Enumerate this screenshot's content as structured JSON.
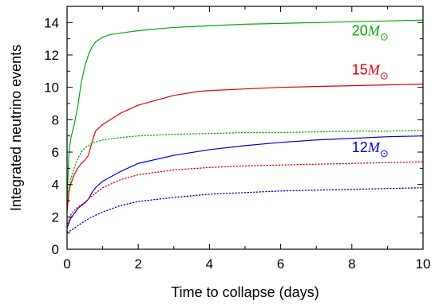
{
  "chart_data": {
    "type": "line",
    "xlabel": "Time to collapse (days)",
    "ylabel": "Integrated neutrino events",
    "xlim": [
      0,
      10
    ],
    "ylim": [
      0,
      15
    ],
    "x_ticks": [
      0,
      2,
      4,
      6,
      8,
      10
    ],
    "y_ticks": [
      0,
      2,
      4,
      6,
      8,
      10,
      12,
      14
    ],
    "x_tick_labels": [
      "0",
      "2",
      "4",
      "6",
      "8",
      "10"
    ],
    "y_tick_labels": [
      "0",
      "2",
      "4",
      "6",
      "8",
      "10",
      "12",
      "14"
    ],
    "grid": false,
    "annotations": [
      {
        "text": "20",
        "symbol": "M",
        "sub": "⊙",
        "color": "#00aa00",
        "x": 8.0,
        "y": 13.2
      },
      {
        "text": "15",
        "symbol": "M",
        "sub": "⊙",
        "color": "#dd0000",
        "x": 8.0,
        "y": 10.8
      },
      {
        "text": "12",
        "symbol": "M",
        "sub": "⊙",
        "color": "#0000cc",
        "x": 8.0,
        "y": 6.0
      }
    ],
    "series": [
      {
        "color": "#00aa00",
        "style": "solid",
        "x": [
          0,
          0.05,
          0.1,
          0.2,
          0.3,
          0.4,
          0.5,
          0.6,
          0.7,
          0.8,
          1.0,
          1.2,
          1.5,
          2,
          3,
          4,
          5,
          6,
          7,
          8,
          9,
          10
        ],
        "y": [
          3.0,
          5.8,
          6.8,
          7.7,
          8.8,
          10.3,
          11.3,
          12.0,
          12.5,
          12.8,
          13.1,
          13.25,
          13.35,
          13.5,
          13.7,
          13.8,
          13.9,
          13.95,
          14.0,
          14.05,
          14.1,
          14.15
        ]
      },
      {
        "color": "#dd0000",
        "style": "solid",
        "x": [
          0,
          0.05,
          0.1,
          0.2,
          0.3,
          0.4,
          0.5,
          0.6,
          0.7,
          0.8,
          1.0,
          1.5,
          2,
          3,
          3.7,
          4,
          5,
          6,
          7,
          8,
          9,
          10
        ],
        "y": [
          2.3,
          3.5,
          4.0,
          4.6,
          5.0,
          5.3,
          5.5,
          5.8,
          6.6,
          7.3,
          7.7,
          8.4,
          8.9,
          9.5,
          9.75,
          9.8,
          9.9,
          10.0,
          10.05,
          10.1,
          10.15,
          10.2
        ]
      },
      {
        "color": "#0000cc",
        "style": "solid",
        "x": [
          0,
          0.05,
          0.1,
          0.2,
          0.3,
          0.4,
          0.5,
          0.6,
          0.7,
          0.8,
          1.0,
          1.5,
          2,
          3,
          4,
          5,
          6,
          7,
          8,
          9,
          10
        ],
        "y": [
          1.3,
          1.6,
          1.9,
          2.2,
          2.5,
          2.7,
          2.85,
          3.1,
          3.5,
          3.8,
          4.2,
          4.8,
          5.3,
          5.8,
          6.15,
          6.4,
          6.6,
          6.75,
          6.85,
          6.95,
          7.0
        ]
      },
      {
        "color": "#00aa00",
        "style": "dotted",
        "x": [
          0,
          0.05,
          0.1,
          0.2,
          0.3,
          0.4,
          0.5,
          0.7,
          1.0,
          1.5,
          2,
          3,
          4,
          5,
          6,
          7,
          8,
          9,
          10
        ],
        "y": [
          3.0,
          3.7,
          4.3,
          5.0,
          5.6,
          6.0,
          6.25,
          6.55,
          6.75,
          6.9,
          7.0,
          7.1,
          7.15,
          7.2,
          7.2,
          7.25,
          7.3,
          7.3,
          7.35
        ]
      },
      {
        "color": "#dd0000",
        "style": "dotted",
        "x": [
          0,
          0.05,
          0.1,
          0.2,
          0.3,
          0.4,
          0.5,
          0.7,
          1.0,
          1.5,
          2,
          3,
          4,
          5,
          6,
          7,
          8,
          9,
          10
        ],
        "y": [
          1.4,
          1.8,
          2.1,
          2.4,
          2.6,
          2.75,
          2.9,
          3.3,
          3.8,
          4.3,
          4.6,
          4.9,
          5.05,
          5.15,
          5.2,
          5.25,
          5.3,
          5.35,
          5.4
        ]
      },
      {
        "color": "#0000cc",
        "style": "dotted",
        "x": [
          0,
          0.1,
          0.2,
          0.3,
          0.4,
          0.5,
          0.7,
          1.0,
          1.5,
          2,
          3,
          4,
          5,
          6,
          7,
          8,
          9,
          10
        ],
        "y": [
          1.05,
          1.15,
          1.3,
          1.45,
          1.6,
          1.75,
          2.0,
          2.3,
          2.7,
          2.95,
          3.2,
          3.4,
          3.5,
          3.6,
          3.65,
          3.7,
          3.75,
          3.8
        ]
      }
    ]
  }
}
